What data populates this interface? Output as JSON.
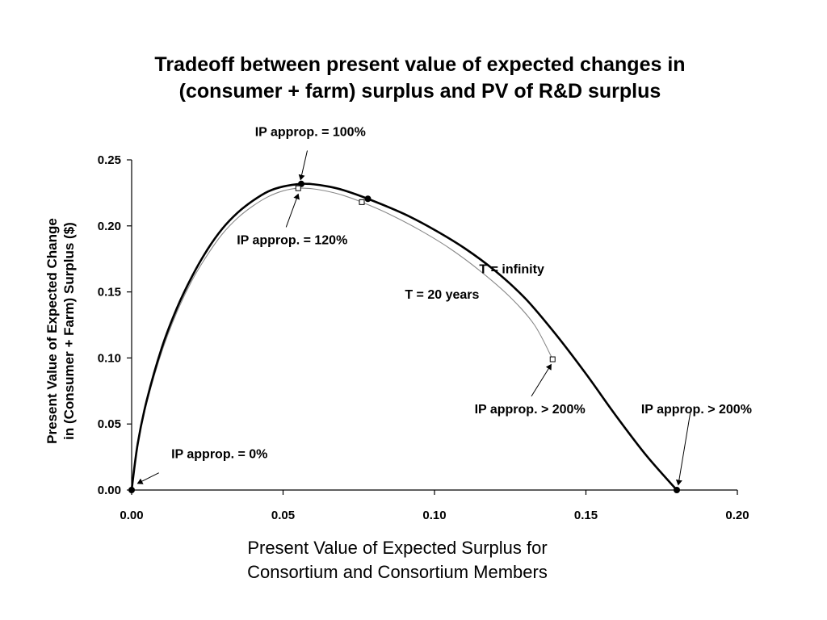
{
  "chart_data": {
    "type": "line",
    "title_lines": [
      "Tradeoff between present value of expected changes in",
      "(consumer + farm) surplus and PV of R&D surplus"
    ],
    "xlabel_lines": [
      "Present Value of Expected Surplus for",
      "Consortium and Consortium Members"
    ],
    "ylabel_lines": [
      "Present Value of Expected Change",
      "in (Consumer + Farm) Surplus ($)"
    ],
    "xlim": [
      0,
      0.2
    ],
    "ylim": [
      0,
      0.25
    ],
    "x_ticks": [
      "0.00",
      "0.05",
      "0.10",
      "0.15",
      "0.20"
    ],
    "y_ticks": [
      "0.00",
      "0.05",
      "0.10",
      "0.15",
      "0.20",
      "0.25"
    ],
    "x_tick_values": [
      0,
      0.05,
      0.1,
      0.15,
      0.2
    ],
    "y_tick_values": [
      0,
      0.05,
      0.1,
      0.15,
      0.2,
      0.25
    ],
    "grid": false,
    "legend": "none",
    "series": [
      {
        "name": "T = infinity",
        "style": "thick",
        "color": "#000000",
        "points": [
          [
            0,
            0
          ],
          [
            0.002,
            0.035
          ],
          [
            0.005,
            0.068
          ],
          [
            0.01,
            0.108
          ],
          [
            0.015,
            0.138
          ],
          [
            0.02,
            0.162
          ],
          [
            0.025,
            0.182
          ],
          [
            0.03,
            0.198
          ],
          [
            0.035,
            0.21
          ],
          [
            0.04,
            0.219
          ],
          [
            0.045,
            0.226
          ],
          [
            0.05,
            0.2298
          ],
          [
            0.056,
            0.2318
          ],
          [
            0.06,
            0.2315
          ],
          [
            0.065,
            0.2298
          ],
          [
            0.07,
            0.227
          ],
          [
            0.078,
            0.2205
          ],
          [
            0.09,
            0.209
          ],
          [
            0.1,
            0.197
          ],
          [
            0.11,
            0.183
          ],
          [
            0.12,
            0.166
          ],
          [
            0.13,
            0.145
          ],
          [
            0.14,
            0.118
          ],
          [
            0.15,
            0.088
          ],
          [
            0.16,
            0.056
          ],
          [
            0.17,
            0.026
          ],
          [
            0.18,
            0
          ]
        ],
        "markers": [
          [
            0,
            0
          ],
          [
            0.056,
            0.2318
          ],
          [
            0.078,
            0.2205
          ],
          [
            0.18,
            0
          ]
        ],
        "marker_style": "filled-circle"
      },
      {
        "name": "T = 20 years",
        "style": "thin",
        "color": "#888888",
        "points": [
          [
            0,
            0
          ],
          [
            0.002,
            0.034
          ],
          [
            0.005,
            0.066
          ],
          [
            0.01,
            0.105
          ],
          [
            0.015,
            0.135
          ],
          [
            0.02,
            0.159
          ],
          [
            0.025,
            0.178
          ],
          [
            0.03,
            0.194
          ],
          [
            0.035,
            0.206
          ],
          [
            0.04,
            0.215
          ],
          [
            0.045,
            0.222
          ],
          [
            0.05,
            0.2265
          ],
          [
            0.055,
            0.2285
          ],
          [
            0.06,
            0.228
          ],
          [
            0.065,
            0.226
          ],
          [
            0.07,
            0.223
          ],
          [
            0.076,
            0.218
          ],
          [
            0.085,
            0.209
          ],
          [
            0.095,
            0.197
          ],
          [
            0.105,
            0.183
          ],
          [
            0.115,
            0.166
          ],
          [
            0.125,
            0.146
          ],
          [
            0.133,
            0.125
          ],
          [
            0.139,
            0.099
          ]
        ],
        "markers": [
          [
            0.055,
            0.2285
          ],
          [
            0.076,
            0.218
          ],
          [
            0.139,
            0.099
          ]
        ],
        "marker_style": "open-square"
      }
    ],
    "annotations": [
      {
        "text": "IP approp. = 100%",
        "x": 0.059,
        "y": 0.268,
        "anchor": "middle",
        "arrow_from": [
          0.058,
          0.257
        ],
        "arrow_to": [
          0.0558,
          0.235
        ]
      },
      {
        "text": "IP approp. = 120%",
        "x": 0.053,
        "y": 0.186,
        "anchor": "middle",
        "arrow_from": [
          0.051,
          0.199
        ],
        "arrow_to": [
          0.055,
          0.224
        ]
      },
      {
        "text": "T = infinity",
        "x": 0.1255,
        "y": 0.164,
        "anchor": "middle"
      },
      {
        "text": "T = 20 years",
        "x": 0.1025,
        "y": 0.145,
        "anchor": "middle"
      },
      {
        "text": "IP approp. > 200%",
        "x": 0.1315,
        "y": 0.058,
        "anchor": "middle",
        "arrow_from": [
          0.132,
          0.071
        ],
        "arrow_to": [
          0.1385,
          0.095
        ]
      },
      {
        "text": "IP approp. > 200%",
        "x": 0.1865,
        "y": 0.058,
        "anchor": "middle",
        "arrow_from": [
          0.1845,
          0.059
        ],
        "arrow_to": [
          0.1805,
          0.004
        ]
      },
      {
        "text": "IP approp. = 0%",
        "x": 0.029,
        "y": 0.024,
        "anchor": "middle",
        "arrow_from": [
          0.009,
          0.013
        ],
        "arrow_to": [
          0.002,
          0.005
        ]
      }
    ]
  }
}
